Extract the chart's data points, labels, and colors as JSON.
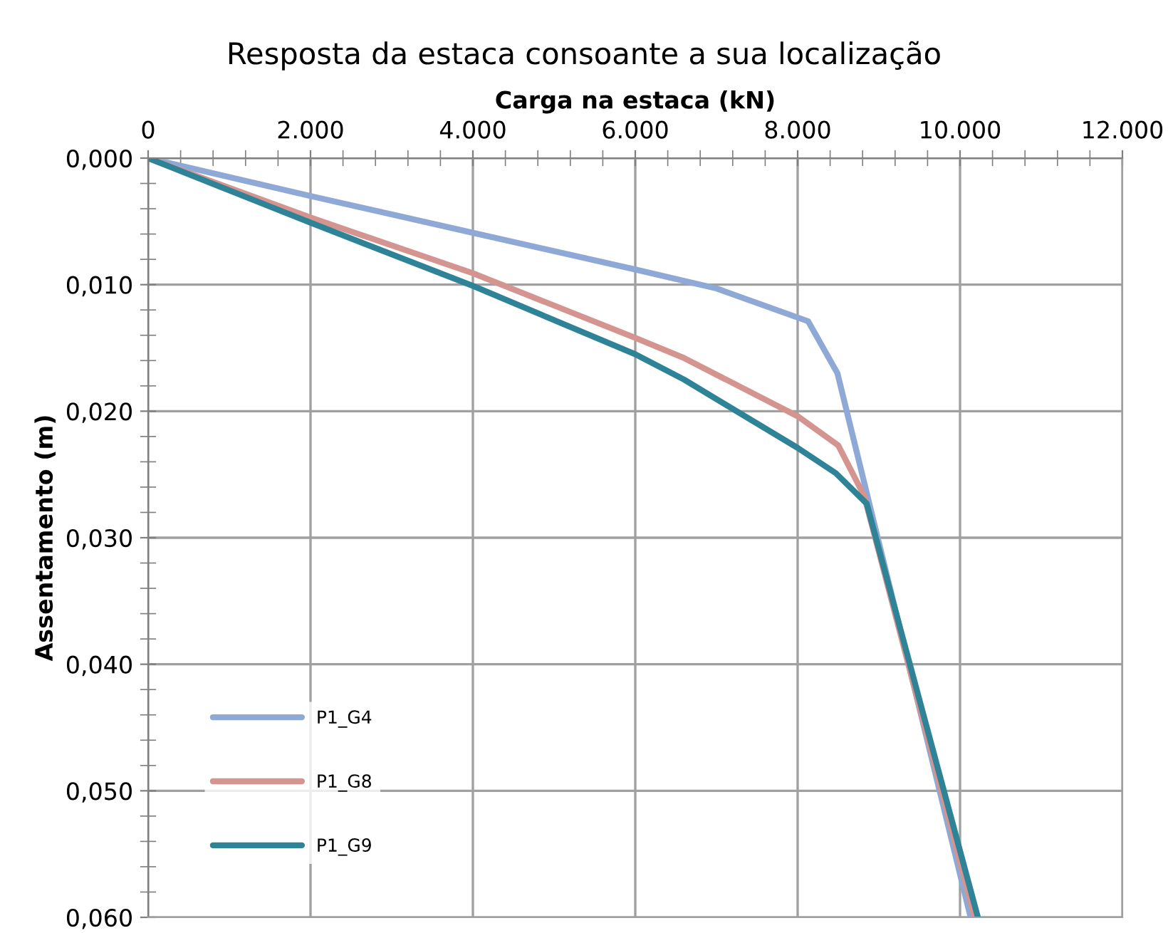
{
  "chart_data": {
    "type": "line",
    "title": "Resposta da estaca consoante a sua localização",
    "xlabel": "Carga na estaca (kN)",
    "ylabel": "Assentamento (m)",
    "xlim": [
      0,
      12000
    ],
    "ylim": [
      0.06,
      0
    ],
    "xticks": [
      0,
      {
        "value": 2000,
        "label": "2.000"
      },
      {
        "value": 4000,
        "label": "4.000"
      },
      {
        "value": 6000,
        "label": "6.000"
      },
      {
        "value": 8000,
        "label": "8.000"
      },
      {
        "value": 10000,
        "label": "10.000"
      },
      {
        "value": 12000,
        "label": "12.000"
      }
    ],
    "yticks": [
      {
        "value": 0,
        "label": "0,000"
      },
      {
        "value": 0.01,
        "label": "0,010"
      },
      {
        "value": 0.02,
        "label": "0,020"
      },
      {
        "value": 0.03,
        "label": "0,030"
      },
      {
        "value": 0.04,
        "label": "0,040"
      },
      {
        "value": 0.05,
        "label": "0,050"
      },
      {
        "value": 0.06,
        "label": "0,060"
      }
    ],
    "grid": true,
    "legend": "bottom left",
    "marker": "none",
    "line_style": "solid",
    "series": [
      {
        "name": "P1_G4",
        "color": "#8fa9d6",
        "x": [
          0,
          2000,
          4000,
          6000,
          7000,
          8130,
          8490,
          10130
        ],
        "values": [
          0,
          0.003,
          0.0059,
          0.0088,
          0.0103,
          0.0129,
          0.017,
          0.06
        ]
      },
      {
        "name": "P1_G8",
        "color": "#d49591",
        "x": [
          0,
          2000,
          4000,
          6000,
          6600,
          8000,
          8500,
          8820,
          10180
        ],
        "values": [
          0,
          0.0047,
          0.0091,
          0.0142,
          0.0158,
          0.0204,
          0.0227,
          0.0267,
          0.06
        ]
      },
      {
        "name": "P1_G9",
        "color": "#2f8396",
        "x": [
          0,
          2000,
          4000,
          6000,
          6600,
          8000,
          8470,
          8850,
          10220
        ],
        "values": [
          0,
          0.0051,
          0.0101,
          0.0155,
          0.0175,
          0.0229,
          0.0249,
          0.0273,
          0.06
        ]
      }
    ]
  }
}
